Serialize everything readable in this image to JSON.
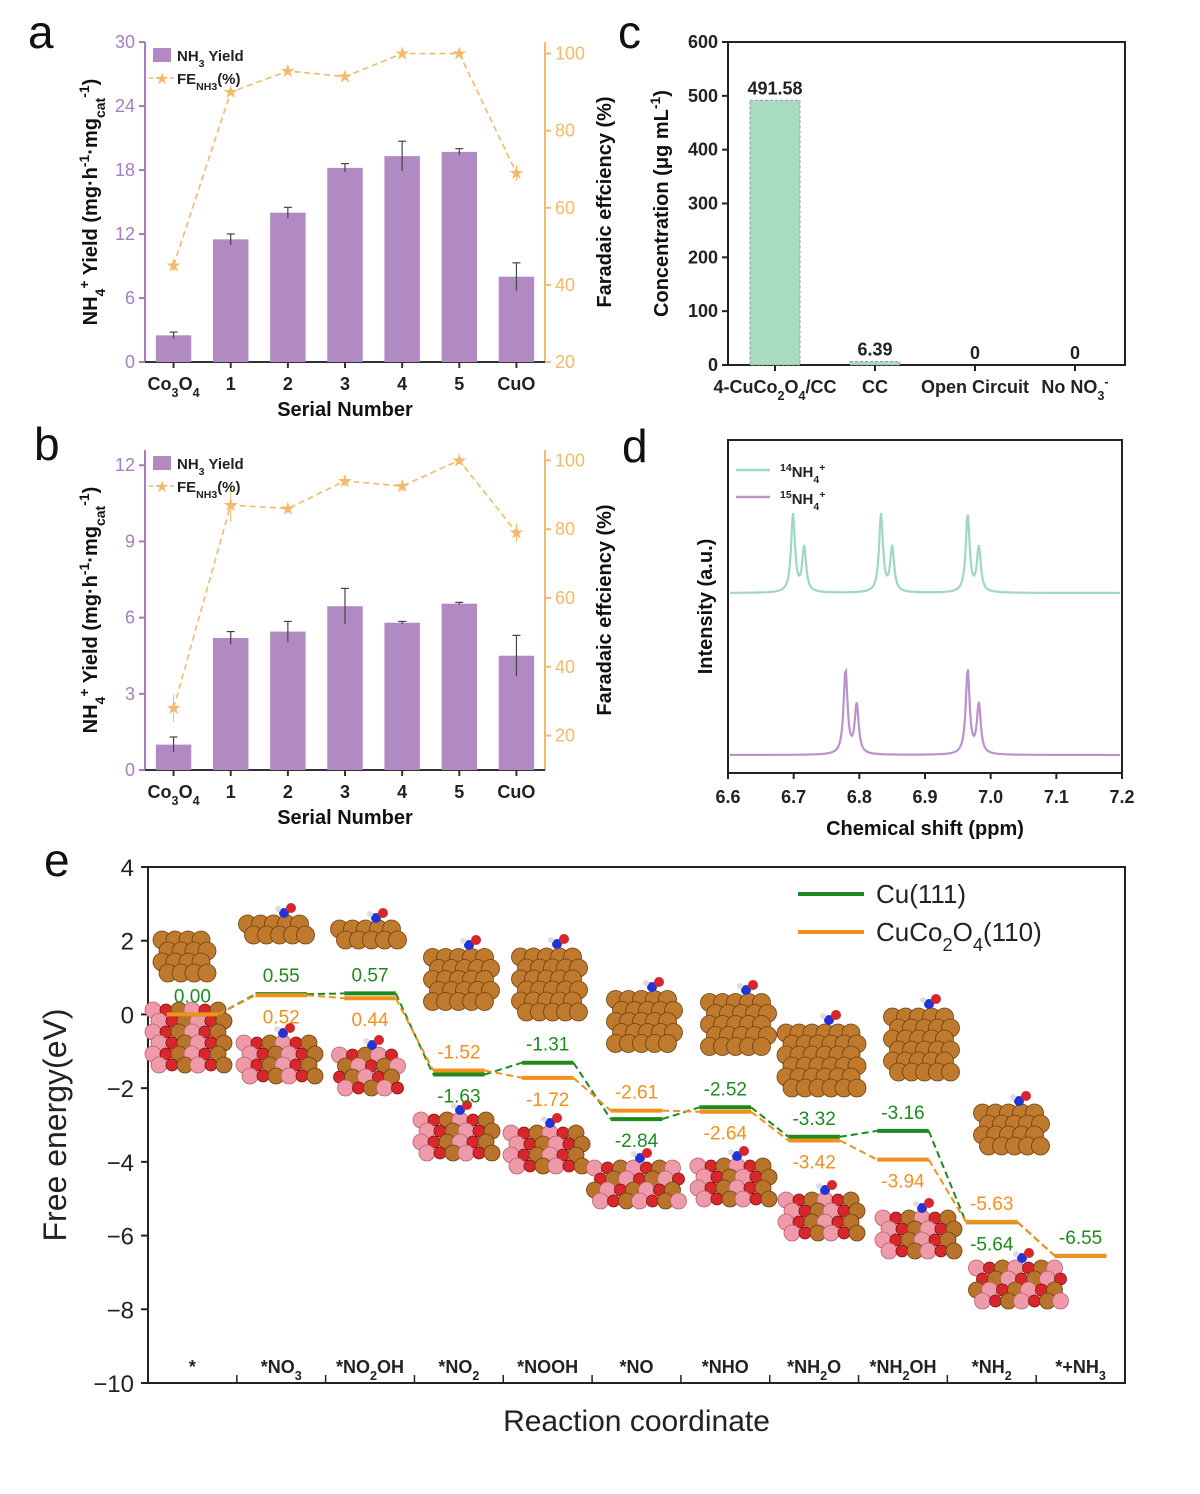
{
  "panels": {
    "a": "a",
    "b": "b",
    "c": "c",
    "d": "d",
    "e": "e"
  },
  "colors": {
    "bar_purple": "#b18ac4",
    "fe_orange": "#f2ba6a",
    "axis_purple": "#a77cc0",
    "green_bar": "#a8dcc0",
    "nmr_green": "#9fd8bb",
    "nmr_purple": "#bb92cc",
    "cu111_green": "#1e8a1e",
    "cuco_orange": "#f2901d"
  },
  "chart_data": [
    {
      "panel": "a",
      "type": "bar",
      "xlabel": "Serial Number",
      "ylabel": "NH4+ Yield (mg·h-1·mgcat-1)",
      "y2label": "Faradaic effciency (%)",
      "categories": [
        "Co3O4",
        "1",
        "2",
        "3",
        "4",
        "5",
        "CuO"
      ],
      "ylim": [
        0,
        30
      ],
      "y_ticks": [
        0,
        6,
        12,
        18,
        24,
        30
      ],
      "y2lim": [
        20,
        103
      ],
      "y2_ticks": [
        20,
        40,
        60,
        80,
        100
      ],
      "series": [
        {
          "name": "NH3 Yield",
          "type": "bar",
          "values": [
            2.5,
            11.5,
            14.0,
            18.2,
            19.3,
            19.7,
            8.0
          ],
          "errors": [
            0.3,
            0.5,
            0.5,
            0.4,
            1.4,
            0.3,
            1.3
          ]
        },
        {
          "name": "FE(NH3)(%)",
          "type": "line",
          "axis": "right",
          "values": [
            45,
            90,
            95.5,
            94,
            100,
            100,
            69
          ],
          "errors": [
            1.5,
            0,
            0,
            0,
            0,
            0,
            2
          ]
        }
      ],
      "legend": [
        "NH3 Yield",
        "FE(NH3)(%)"
      ]
    },
    {
      "panel": "b",
      "type": "bar",
      "xlabel": "Serial Number",
      "ylabel": "NH4+ Yield (mg·h-1·mgcat-1)",
      "y2label": "Faradaic effciency (%)",
      "categories": [
        "Co3O4",
        "1",
        "2",
        "3",
        "4",
        "5",
        "CuO"
      ],
      "ylim": [
        0,
        12.6
      ],
      "y_ticks": [
        0,
        3,
        6,
        9,
        12
      ],
      "y2lim": [
        10,
        103
      ],
      "y2_ticks": [
        20,
        40,
        60,
        80,
        100
      ],
      "series": [
        {
          "name": "NH3 Yield",
          "type": "bar",
          "values": [
            1.0,
            5.2,
            5.45,
            6.45,
            5.8,
            6.55,
            4.5
          ],
          "errors": [
            0.3,
            0.25,
            0.4,
            0.7,
            0.05,
            0.05,
            0.8
          ]
        },
        {
          "name": "FE(NH3)(%)",
          "type": "line",
          "axis": "right",
          "values": [
            28,
            87,
            86,
            94,
            92.5,
            100,
            79
          ],
          "errors": [
            4,
            5,
            1.5,
            1.5,
            1.5,
            1,
            2.5
          ]
        }
      ],
      "legend": [
        "NH3 Yield",
        "FE(NH3)(%)"
      ]
    },
    {
      "panel": "c",
      "type": "bar",
      "ylabel": "Concentration (μg mL-1)",
      "categories": [
        "4-CuCo2O4/CC",
        "CC",
        "Open Circuit",
        "No NO3-"
      ],
      "values": [
        491.58,
        6.39,
        0,
        0
      ],
      "value_labels": [
        "491.58",
        "6.39",
        "0",
        "0"
      ],
      "ylim": [
        0,
        600
      ],
      "y_ticks": [
        0,
        100,
        200,
        300,
        400,
        500,
        600
      ]
    },
    {
      "panel": "d",
      "type": "line",
      "xlabel": "Chemical shift (ppm)",
      "ylabel": "Intensity (a.u.)",
      "xlim": [
        6.6,
        7.2
      ],
      "x_ticks": [
        "6.6",
        "6.7",
        "6.8",
        "6.9",
        "7.0",
        "7.1",
        "7.2"
      ],
      "series": [
        {
          "name": "14NH4+",
          "peaks": [
            6.699,
            6.716,
            6.833,
            6.85,
            6.965,
            6.982
          ]
        },
        {
          "name": "15NH4+",
          "peaks": [
            6.779,
            6.796,
            6.965,
            6.982
          ]
        }
      ]
    },
    {
      "panel": "e",
      "type": "line",
      "xlabel": "Reaction coordinate",
      "ylabel": "Free energy(eV)",
      "ylim": [
        -10,
        4
      ],
      "y_ticks": [
        4,
        2,
        0,
        -2,
        -4,
        -6,
        -8,
        -10
      ],
      "categories": [
        "*",
        "*NO3",
        "*NO2OH",
        "*NO2",
        "*NOOH",
        "*NO",
        "*NHO",
        "*NH2O",
        "*NH2OH",
        "*NH2",
        "*+NH3"
      ],
      "series": [
        {
          "name": "Cu(111)",
          "values": [
            0.0,
            0.55,
            0.57,
            -1.63,
            -1.31,
            -2.84,
            -2.52,
            -3.32,
            -3.16,
            -5.64,
            -6.55
          ],
          "labels": [
            "0.00",
            "0.55",
            "0.57",
            "-1.63",
            "-1.31",
            "-2.84",
            "-2.52",
            "-3.32",
            "-3.16",
            "-5.64",
            "-6.55"
          ]
        },
        {
          "name": "CuCo2O4(110)",
          "values": [
            0.0,
            0.52,
            0.44,
            -1.52,
            -1.72,
            -2.61,
            -2.64,
            -3.42,
            -3.94,
            -5.63,
            -6.55
          ],
          "labels": [
            "",
            "0.52",
            "0.44",
            "-1.52",
            "-1.72",
            "-2.61",
            "-2.64",
            "-3.42",
            "-3.94",
            "-5.63",
            ""
          ]
        }
      ],
      "legend": [
        "Cu(111)",
        "CuCo2O4(110)"
      ]
    }
  ]
}
